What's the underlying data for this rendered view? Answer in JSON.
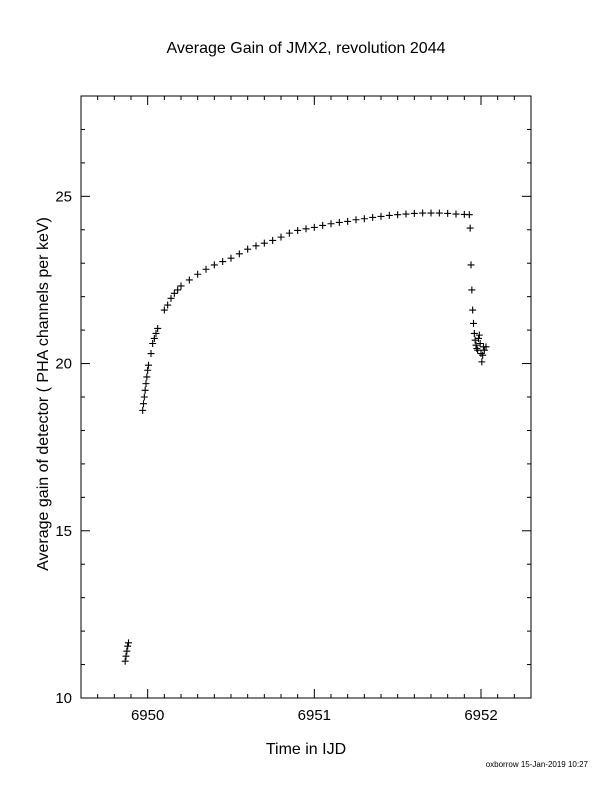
{
  "chart_data": {
    "type": "scatter",
    "title": "Average Gain of JMX2, revolution 2044",
    "xlabel": "Time in IJD",
    "ylabel": "Average gain of detector ( PHA channels per keV)",
    "xlim": [
      6949.6,
      6952.3
    ],
    "ylim": [
      10,
      28
    ],
    "x_ticks": [
      6950,
      6951,
      6952
    ],
    "x_tick_labels": [
      "6950",
      "6951",
      "6952"
    ],
    "y_ticks": [
      10,
      15,
      20,
      25
    ],
    "y_tick_labels": [
      "10",
      "15",
      "20",
      "25"
    ],
    "grid": false,
    "legend": "none",
    "marker": "plus",
    "marker_color": "#000000",
    "series": [
      {
        "points": [
          [
            6949.865,
            11.1
          ],
          [
            6949.87,
            11.25
          ],
          [
            6949.875,
            11.4
          ],
          [
            6949.88,
            11.55
          ],
          [
            6949.885,
            11.65
          ],
          [
            6949.97,
            18.6
          ],
          [
            6949.975,
            18.8
          ],
          [
            6949.98,
            19.0
          ],
          [
            6949.985,
            19.2
          ],
          [
            6949.99,
            19.4
          ],
          [
            6949.995,
            19.6
          ],
          [
            6950.0,
            19.8
          ],
          [
            6950.005,
            19.95
          ],
          [
            6950.02,
            20.3
          ],
          [
            6950.03,
            20.6
          ],
          [
            6950.04,
            20.75
          ],
          [
            6950.05,
            20.9
          ],
          [
            6950.06,
            21.05
          ],
          [
            6950.1,
            21.6
          ],
          [
            6950.12,
            21.75
          ],
          [
            6950.14,
            21.95
          ],
          [
            6950.16,
            22.1
          ],
          [
            6950.18,
            22.2
          ],
          [
            6950.2,
            22.32
          ],
          [
            6950.25,
            22.5
          ],
          [
            6950.3,
            22.67
          ],
          [
            6950.35,
            22.82
          ],
          [
            6950.4,
            22.95
          ],
          [
            6950.45,
            23.05
          ],
          [
            6950.5,
            23.15
          ],
          [
            6950.55,
            23.28
          ],
          [
            6950.6,
            23.42
          ],
          [
            6950.65,
            23.52
          ],
          [
            6950.7,
            23.6
          ],
          [
            6950.75,
            23.68
          ],
          [
            6950.8,
            23.78
          ],
          [
            6950.85,
            23.9
          ],
          [
            6950.9,
            23.98
          ],
          [
            6950.95,
            24.03
          ],
          [
            6951.0,
            24.07
          ],
          [
            6951.05,
            24.13
          ],
          [
            6951.1,
            24.18
          ],
          [
            6951.15,
            24.22
          ],
          [
            6951.2,
            24.25
          ],
          [
            6951.25,
            24.3
          ],
          [
            6951.3,
            24.33
          ],
          [
            6951.35,
            24.37
          ],
          [
            6951.4,
            24.4
          ],
          [
            6951.45,
            24.43
          ],
          [
            6951.5,
            24.45
          ],
          [
            6951.55,
            24.47
          ],
          [
            6951.6,
            24.49
          ],
          [
            6951.65,
            24.5
          ],
          [
            6951.7,
            24.5
          ],
          [
            6951.75,
            24.5
          ],
          [
            6951.8,
            24.49
          ],
          [
            6951.85,
            24.47
          ],
          [
            6951.9,
            24.46
          ],
          [
            6951.93,
            24.45
          ],
          [
            6951.935,
            24.05
          ],
          [
            6951.94,
            22.95
          ],
          [
            6951.945,
            22.2
          ],
          [
            6951.95,
            21.6
          ],
          [
            6951.955,
            21.2
          ],
          [
            6951.96,
            20.9
          ],
          [
            6951.965,
            20.7
          ],
          [
            6951.97,
            20.55
          ],
          [
            6951.975,
            20.45
          ],
          [
            6951.98,
            20.4
          ],
          [
            6951.985,
            20.75
          ],
          [
            6951.99,
            20.85
          ],
          [
            6951.995,
            20.6
          ],
          [
            6952.0,
            20.3
          ],
          [
            6952.005,
            20.05
          ],
          [
            6952.01,
            20.25
          ],
          [
            6952.015,
            20.5
          ],
          [
            6952.02,
            20.4
          ],
          [
            6952.03,
            20.5
          ]
        ]
      }
    ]
  },
  "footer": {
    "stamp": "oxborrow 15-Jan-2019 10:27"
  }
}
